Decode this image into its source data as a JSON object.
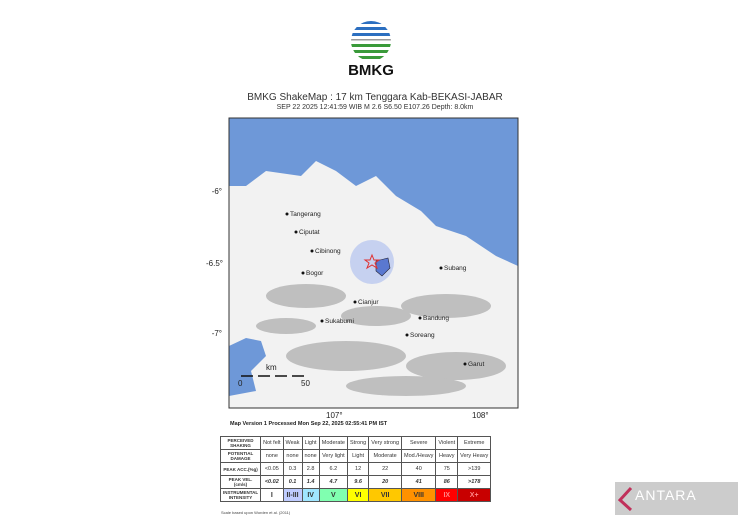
{
  "logo": {
    "text": "BMKG"
  },
  "header": {
    "title": "BMKG ShakeMap : 17 km Tenggara Kab-BEKASI-JABAR",
    "subtitle": "SEP 22 2025 12:41:59  WIB   M 2.6   S6.50 E107.26   Depth: 8.0km"
  },
  "map": {
    "lat_ticks": [
      "-6°",
      "-6.5°",
      "-7°"
    ],
    "lon_ticks": [
      "107°",
      "108°"
    ],
    "cities": [
      "Tangerang",
      "Ciputat",
      "Cibinong",
      "Bogor",
      "Cianjur",
      "Sukabumi",
      "Bandung",
      "Soreang",
      "Subang",
      "Garut"
    ],
    "scale": {
      "unit": "km",
      "min": "0",
      "max": "50"
    },
    "epicenter_icon": "star-icon",
    "colors": {
      "sea": "#6e98d8",
      "land": "#f2f2f2",
      "shaking": "#5a78d0",
      "epicenter": "#e03030"
    }
  },
  "version": "Map Version 1 Processed Mon Sep 22, 2025 02:55:41 PM IST",
  "legend": {
    "row_labels": [
      "PERCEIVED SHAKING",
      "POTENTIAL DAMAGE",
      "PEAK ACC.(%g)",
      "PEAK VEL.(cm/s)",
      "INSTRUMENTAL INTENSITY"
    ],
    "shaking": [
      "Not felt",
      "Weak",
      "Light",
      "Moderate",
      "Strong",
      "Very strong",
      "Severe",
      "Violent",
      "Extreme"
    ],
    "damage": [
      "none",
      "none",
      "none",
      "Very light",
      "Light",
      "Moderate",
      "Mod./Heavy",
      "Heavy",
      "Very Heavy"
    ],
    "acc": [
      "<0.05",
      "0.3",
      "2.8",
      "6.2",
      "12",
      "22",
      "40",
      "75",
      ">139"
    ],
    "vel": [
      "<0.02",
      "0.1",
      "1.4",
      "4.7",
      "9.6",
      "20",
      "41",
      "86",
      ">178"
    ],
    "intensity": [
      "I",
      "II-III",
      "IV",
      "V",
      "VI",
      "VII",
      "VIII",
      "IX",
      "X+"
    ],
    "intensity_colors": [
      "#ffffff",
      "#bfccff",
      "#a0e6ff",
      "#80ffb0",
      "#ffff00",
      "#ffc800",
      "#ff9100",
      "#ff0000",
      "#c80000"
    ],
    "footnote": "Scale based upon Worden et al. (2011)"
  },
  "watermark": {
    "text": "ANTARA"
  }
}
